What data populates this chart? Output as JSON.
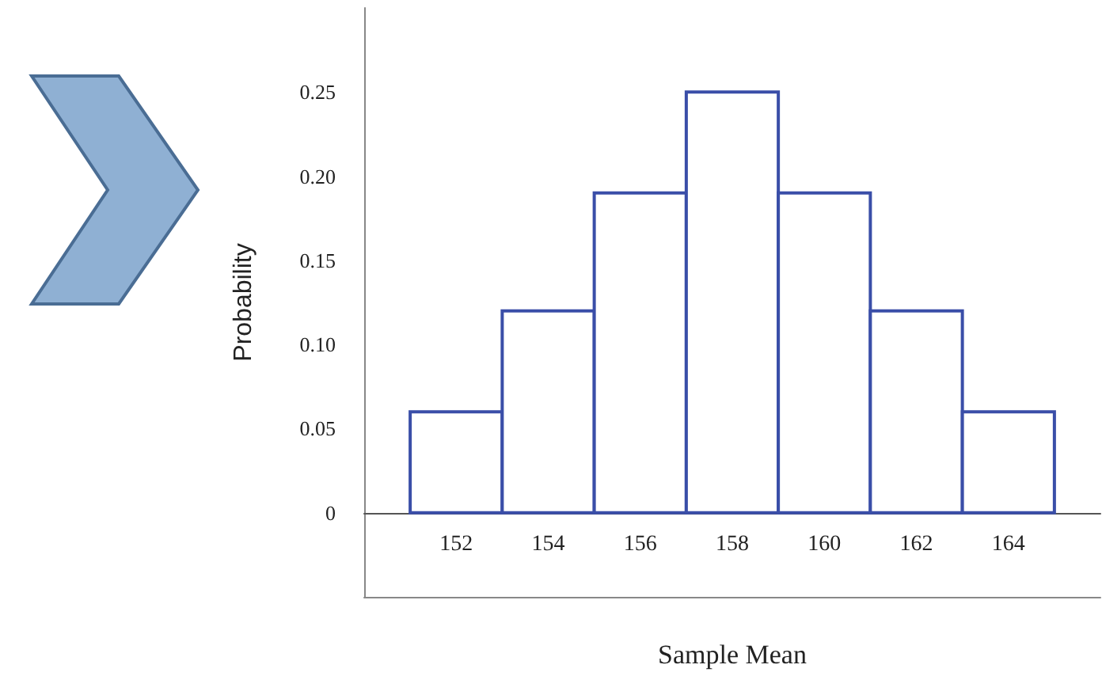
{
  "chart_data": {
    "type": "histogram",
    "xlabel": "Sample Mean",
    "ylabel": "Probability",
    "bins": [
      151,
      153,
      155,
      157,
      159,
      161,
      163,
      165
    ],
    "values": [
      0.06,
      0.12,
      0.19,
      0.25,
      0.19,
      0.12,
      0.06
    ],
    "color": "#3a4ea8",
    "xlim": [
      150,
      166
    ],
    "xticks": [
      152,
      154,
      156,
      158,
      160,
      162,
      164
    ],
    "ylim": [
      -0.05,
      0.3
    ],
    "yticks": [
      0,
      0.05,
      {
        "value": 0.1,
        "label": "0.10"
      },
      0.15,
      {
        "value": 0.2,
        "label": "0.20"
      },
      0.25
    ],
    "tick_labels": "xy"
  }
}
